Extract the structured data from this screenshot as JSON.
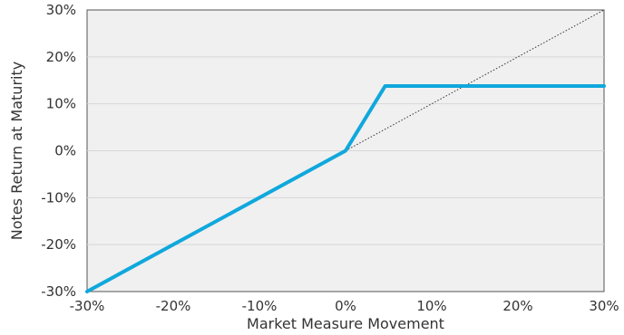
{
  "chart_data": {
    "type": "line",
    "xlabel": "Market Measure Movement",
    "ylabel": "Notes Return at Maturity",
    "xlim": [
      -30,
      30
    ],
    "ylim": [
      -30,
      30
    ],
    "x_ticks": [
      -30,
      -20,
      -10,
      0,
      10,
      20,
      30
    ],
    "y_ticks": [
      -30,
      -20,
      -10,
      0,
      10,
      20,
      30
    ],
    "x_tick_labels": [
      "-30%",
      "-20%",
      "-10%",
      "0%",
      "10%",
      "20%",
      "30%"
    ],
    "y_tick_labels": [
      "-30%",
      "-20%",
      "-10%",
      "0%",
      "10%",
      "20%",
      "30%"
    ],
    "grid": true,
    "legend": "none",
    "series": [
      {
        "style": "solid",
        "color": "#0fa8dc",
        "x": [
          -30,
          0,
          4.6,
          30
        ],
        "y": [
          -30,
          0,
          13.8,
          13.8
        ]
      },
      {
        "style": "dotted",
        "color": "#333333",
        "x": [
          0,
          30
        ],
        "y": [
          0,
          30
        ]
      }
    ],
    "colors": {
      "plot_background": "#f0f0f0",
      "grid": "#d6d6d6",
      "axis": "#555555"
    }
  }
}
